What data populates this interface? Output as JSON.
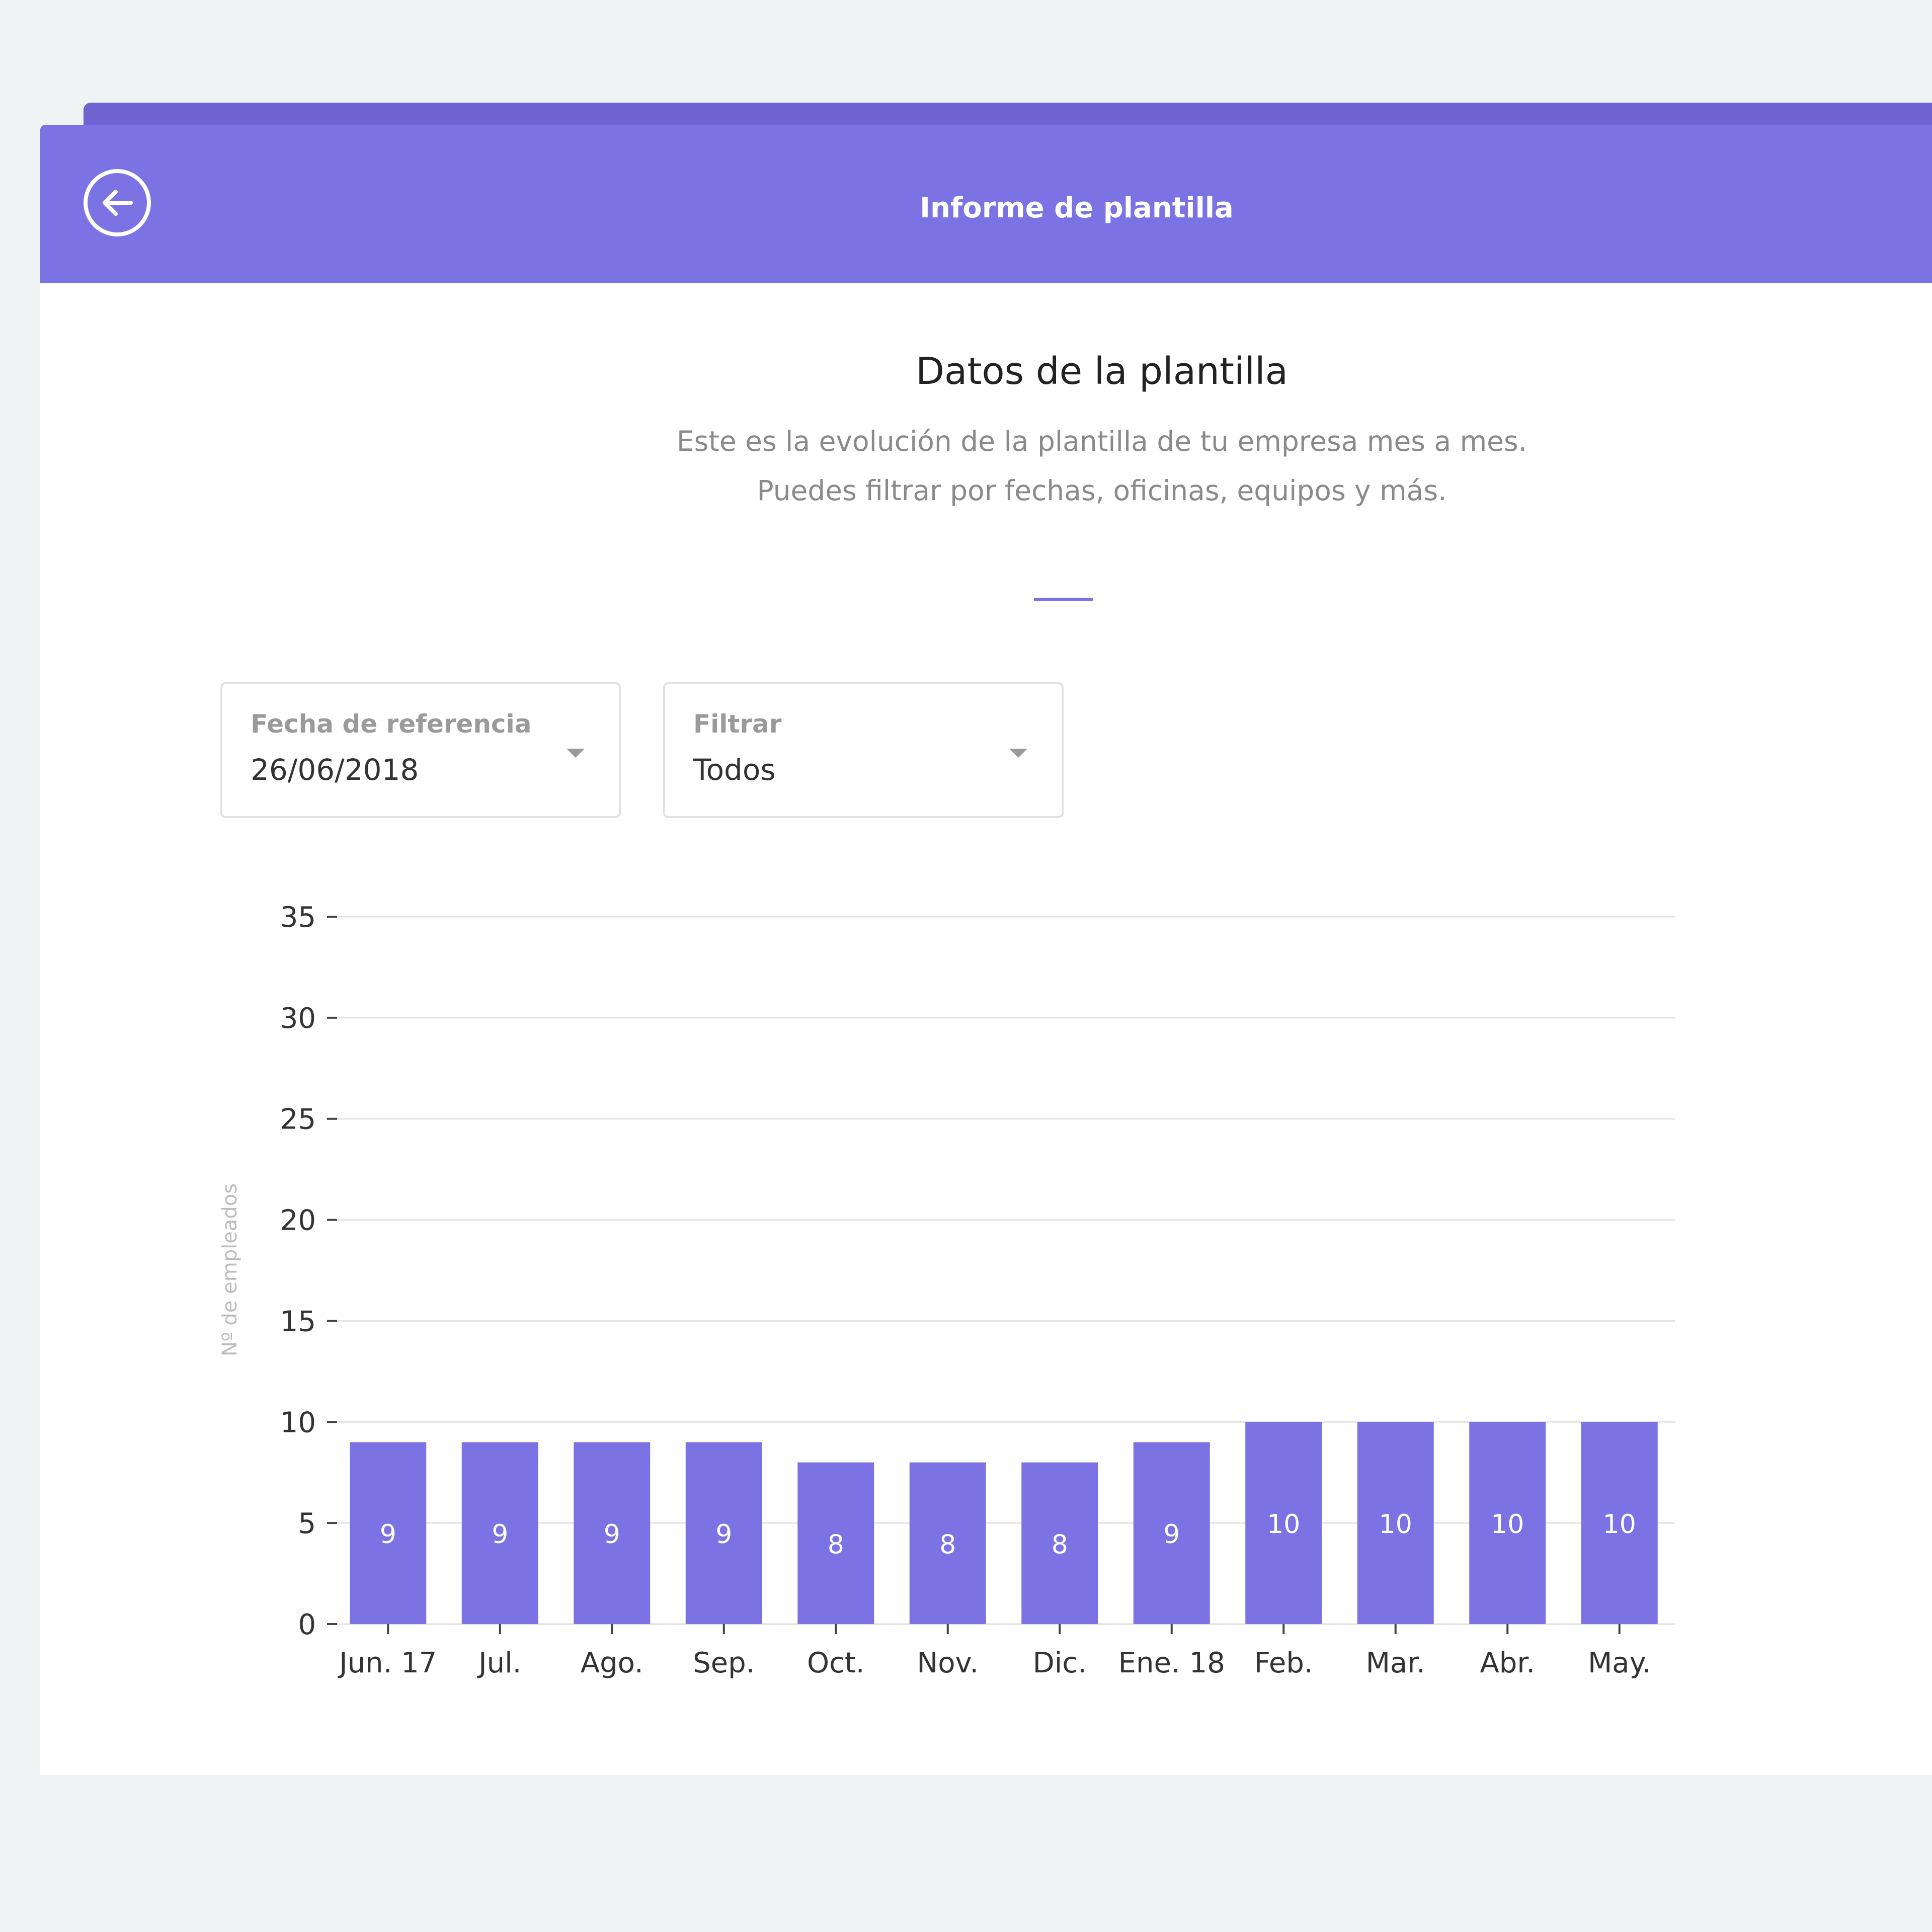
{
  "header": {
    "title": "Informe de plantilla",
    "back_icon": "arrow-left-circle-icon"
  },
  "main": {
    "title": "Datos de la plantilla",
    "description": "Este es la evolución de la plantilla de tu empresa mes a mes. Puedes filtrar por fechas, oficinas, equipos y más."
  },
  "filters": {
    "reference_date": {
      "label": "Fecha de referencia",
      "value": "26/06/2018"
    },
    "filter": {
      "label": "Filtrar",
      "value": "Todos"
    }
  },
  "colors": {
    "accent": "#7b72e3",
    "header_bar": "#7b72e3",
    "background": "#eff3f3"
  },
  "chart_data": {
    "type": "bar",
    "categories": [
      "Jun. 17",
      "Jul.",
      "Ago.",
      "Sep.",
      "Oct.",
      "Nov.",
      "Dic.",
      "Ene. 18",
      "Feb.",
      "Mar.",
      "Abr.",
      "May."
    ],
    "values": [
      9,
      9,
      9,
      9,
      8,
      8,
      8,
      9,
      10,
      10,
      10,
      10
    ],
    "title": "",
    "xlabel": "",
    "ylabel": "Nº de empleados",
    "ylim": [
      0,
      35
    ],
    "yticks": [
      0,
      5,
      10,
      15,
      20,
      25,
      30,
      35
    ],
    "grid": true,
    "data_labels": true,
    "bar_color": "#7b72e3"
  }
}
